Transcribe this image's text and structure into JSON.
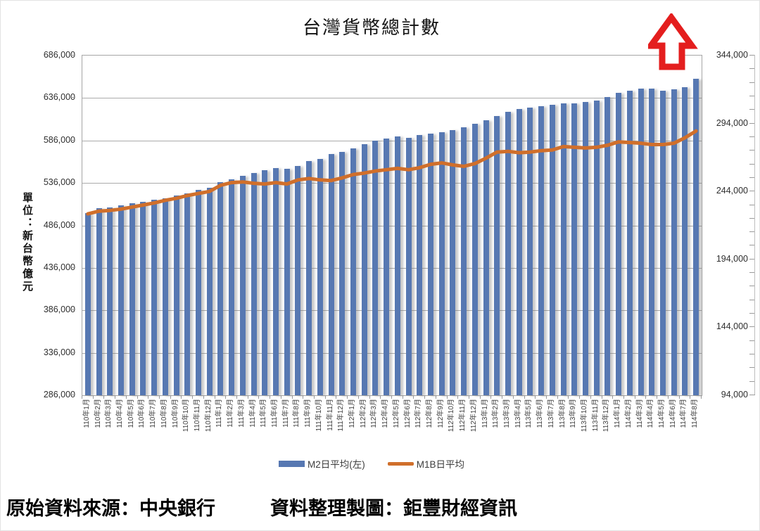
{
  "title": "台灣貨幣總計數",
  "annotation": {
    "type": "hollow-up-arrow",
    "color": "#e41e1e"
  },
  "left_axis": {
    "title": "單位：新台幣億元",
    "tick_values": [
      686000,
      636000,
      586000,
      536000,
      486000,
      436000,
      386000,
      336000,
      286000
    ],
    "tick_labels": [
      "686,000",
      "636,000",
      "586,000",
      "536,000",
      "486,000",
      "436,000",
      "386,000",
      "336,000",
      "286,000"
    ]
  },
  "right_axis": {
    "tick_values": [
      344000,
      294000,
      244000,
      194000,
      144000,
      94000
    ],
    "tick_labels": [
      "344,000",
      "294,000",
      "244,000",
      "194,000",
      "144,000",
      "94,000"
    ],
    "minor_step": 10000
  },
  "footer": {
    "source": "原始資料來源：中央銀行",
    "credit": "資料整理製圖：鉅豐財經資訊"
  },
  "chart_data": {
    "type": "bar+line",
    "title": "台灣貨幣總計數",
    "left_axis_label": "單位：新台幣億元",
    "left_ylim": [
      286000,
      686000
    ],
    "right_ylim": [
      94000,
      344000
    ],
    "gridlines": "horizontal major, drawn behind bars",
    "legend_position": "bottom-center",
    "categories": [
      "110年1月",
      "110年2月",
      "110年3月",
      "110年4月",
      "110年5月",
      "110年6月",
      "110年7月",
      "110年8月",
      "110年9月",
      "110年10月",
      "110年11月",
      "110年12月",
      "111年1月",
      "111年2月",
      "111年3月",
      "111年4月",
      "111年5月",
      "111年6月",
      "111年7月",
      "111年8月",
      "111年9月",
      "111年10月",
      "111年11月",
      "111年12月",
      "112年1月",
      "112年2月",
      "112年3月",
      "112年4月",
      "112年5月",
      "112年6月",
      "112年7月",
      "112年8月",
      "112年9月",
      "112年10月",
      "112年11月",
      "112年12月",
      "113年1月",
      "113年2月",
      "113年3月",
      "113年4月",
      "113年5月",
      "113年6月",
      "113年7月",
      "113年8月",
      "113年9月",
      "113年10月",
      "113年11月",
      "113年12月",
      "114年1月",
      "114年2月",
      "114年3月",
      "114年4月",
      "114年5月",
      "114年6月",
      "114年7月",
      "114年8月"
    ],
    "series": [
      {
        "name": "M2日平均(左)",
        "type": "bar",
        "axis": "left",
        "color": "#5778b2",
        "values": [
          500500,
          506500,
          507500,
          510000,
          512000,
          514000,
          516000,
          518000,
          521000,
          523500,
          527500,
          530500,
          537000,
          540500,
          544500,
          547500,
          551000,
          553500,
          552500,
          556000,
          561500,
          564000,
          570000,
          572500,
          577000,
          582000,
          585500,
          588500,
          590500,
          589500,
          592500,
          594500,
          596000,
          598000,
          601500,
          605500,
          610000,
          614500,
          620000,
          623000,
          625000,
          626500,
          628000,
          629500,
          630000,
          631000,
          633000,
          637000,
          642000,
          645000,
          647500,
          647500,
          645000,
          646500,
          649000,
          659000
        ]
      },
      {
        "name": "M1B日平均",
        "type": "line",
        "axis": "right",
        "color": "#d06f2b",
        "values": [
          227500,
          229500,
          230000,
          231000,
          232500,
          234000,
          235500,
          237500,
          239000,
          241000,
          242500,
          244000,
          248500,
          250500,
          251000,
          250000,
          249500,
          250500,
          249500,
          252500,
          253500,
          252500,
          252000,
          254000,
          256500,
          257500,
          259000,
          260000,
          261000,
          260000,
          261500,
          264000,
          265000,
          263500,
          262500,
          264500,
          268500,
          273000,
          273500,
          272500,
          273000,
          274000,
          274500,
          277000,
          276500,
          276000,
          276500,
          278000,
          280500,
          280000,
          279500,
          278500,
          278500,
          279500,
          283500,
          288500
        ]
      }
    ]
  }
}
